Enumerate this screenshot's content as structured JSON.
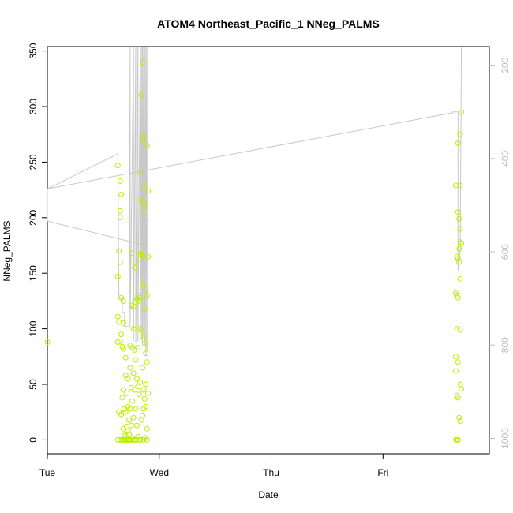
{
  "chart_data": {
    "type": "scatter",
    "title": "ATOM4 Northeast_Pacific_1 NNeg_PALMS",
    "xlabel": "Date",
    "ylabel": "NNeg_PALMS",
    "xlim": [
      0,
      3.95
    ],
    "ylim": [
      -12.5,
      354
    ],
    "x_ticks": [
      {
        "value": 0,
        "label": "Tue"
      },
      {
        "value": 1,
        "label": "Wed"
      },
      {
        "value": 2,
        "label": "Thu"
      },
      {
        "value": 3,
        "label": "Fri"
      }
    ],
    "y_ticks": [
      0,
      50,
      100,
      150,
      200,
      250,
      300,
      350
    ],
    "right_axis": {
      "range": [
        1033,
        160
      ],
      "ticks": [
        200,
        400,
        600,
        800,
        1000
      ],
      "color": "#bdbdbd"
    },
    "grid": false,
    "colors": {
      "points": "#b8f000",
      "line": "#c8c8c8"
    },
    "series": [
      {
        "type": "scatter",
        "points": [
          [
            0.0,
            88
          ],
          [
            0.63,
            247
          ],
          [
            0.63,
            147
          ],
          [
            0.63,
            111
          ],
          [
            0.63,
            88
          ],
          [
            0.63,
            0
          ],
          [
            0.64,
            170
          ],
          [
            0.64,
            106
          ],
          [
            0.64,
            25
          ],
          [
            0.65,
            233
          ],
          [
            0.65,
            206
          ],
          [
            0.65,
            200
          ],
          [
            0.65,
            160
          ],
          [
            0.65,
            89
          ],
          [
            0.65,
            0
          ],
          [
            0.66,
            221
          ],
          [
            0.66,
            128
          ],
          [
            0.66,
            95
          ],
          [
            0.66,
            23
          ],
          [
            0.67,
            84
          ],
          [
            0.67,
            38
          ],
          [
            0.67,
            0
          ],
          [
            0.68,
            125
          ],
          [
            0.68,
            105
          ],
          [
            0.68,
            82
          ],
          [
            0.68,
            45
          ],
          [
            0.68,
            10
          ],
          [
            0.68,
            0
          ],
          [
            0.69,
            28
          ],
          [
            0.69,
            4
          ],
          [
            0.69,
            0
          ],
          [
            0.7,
            74
          ],
          [
            0.7,
            58
          ],
          [
            0.7,
            25
          ],
          [
            0.7,
            3
          ],
          [
            0.7,
            0
          ],
          [
            0.71,
            42
          ],
          [
            0.71,
            12
          ],
          [
            0.71,
            0
          ],
          [
            0.72,
            55
          ],
          [
            0.72,
            30
          ],
          [
            0.72,
            8
          ],
          [
            0.72,
            0
          ],
          [
            0.73,
            18
          ],
          [
            0.73,
            5
          ],
          [
            0.73,
            0
          ],
          [
            0.74,
            85
          ],
          [
            0.74,
            65
          ],
          [
            0.74,
            28
          ],
          [
            0.74,
            0
          ],
          [
            0.75,
            168
          ],
          [
            0.75,
            121
          ],
          [
            0.75,
            47
          ],
          [
            0.75,
            13
          ],
          [
            0.75,
            0
          ],
          [
            0.76,
            83
          ],
          [
            0.76,
            35
          ],
          [
            0.76,
            2
          ],
          [
            0.77,
            120
          ],
          [
            0.77,
            100
          ],
          [
            0.77,
            60
          ],
          [
            0.77,
            20
          ],
          [
            0.77,
            0
          ],
          [
            0.78,
            155
          ],
          [
            0.78,
            81
          ],
          [
            0.78,
            45
          ],
          [
            0.78,
            0
          ],
          [
            0.79,
            160
          ],
          [
            0.79,
            124
          ],
          [
            0.79,
            72
          ],
          [
            0.79,
            28
          ],
          [
            0.79,
            0
          ],
          [
            0.8,
            127
          ],
          [
            0.8,
            55
          ],
          [
            0.8,
            13
          ],
          [
            0.81,
            130
          ],
          [
            0.81,
            83
          ],
          [
            0.81,
            48
          ],
          [
            0.81,
            3
          ],
          [
            0.82,
            125
          ],
          [
            0.82,
            100
          ],
          [
            0.82,
            41
          ],
          [
            0.82,
            0
          ],
          [
            0.83,
            241
          ],
          [
            0.83,
            167
          ],
          [
            0.83,
            128
          ],
          [
            0.83,
            52
          ],
          [
            0.83,
            0
          ],
          [
            0.84,
            310
          ],
          [
            0.84,
            216
          ],
          [
            0.84,
            168
          ],
          [
            0.84,
            99
          ],
          [
            0.84,
            18
          ],
          [
            0.85,
            340
          ],
          [
            0.85,
            270
          ],
          [
            0.85,
            165
          ],
          [
            0.85,
            140
          ],
          [
            0.85,
            65
          ],
          [
            0.85,
            22
          ],
          [
            0.86,
            273
          ],
          [
            0.86,
            214
          ],
          [
            0.86,
            93
          ],
          [
            0.86,
            45
          ],
          [
            0.86,
            28
          ],
          [
            0.86,
            0
          ],
          [
            0.87,
            228
          ],
          [
            0.87,
            209
          ],
          [
            0.87,
            118
          ],
          [
            0.87,
            87
          ],
          [
            0.87,
            37
          ],
          [
            0.87,
            2
          ],
          [
            0.88,
            200
          ],
          [
            0.88,
            135
          ],
          [
            0.88,
            78
          ],
          [
            0.88,
            50
          ],
          [
            0.88,
            30
          ],
          [
            0.89,
            265
          ],
          [
            0.89,
            130
          ],
          [
            0.89,
            70
          ],
          [
            0.89,
            10
          ],
          [
            0.89,
            0
          ],
          [
            0.9,
            224
          ],
          [
            0.9,
            165
          ],
          [
            0.9,
            42
          ],
          [
            3.65,
            229
          ],
          [
            3.65,
            132
          ],
          [
            3.65,
            75
          ],
          [
            3.65,
            62
          ],
          [
            3.65,
            0
          ],
          [
            3.66,
            165
          ],
          [
            3.66,
            130
          ],
          [
            3.66,
            100
          ],
          [
            3.66,
            40
          ],
          [
            3.66,
            0
          ],
          [
            3.67,
            267
          ],
          [
            3.67,
            205
          ],
          [
            3.67,
            163
          ],
          [
            3.67,
            128
          ],
          [
            3.67,
            70
          ],
          [
            3.67,
            38
          ],
          [
            3.67,
            0
          ],
          [
            3.68,
            199
          ],
          [
            3.68,
            172
          ],
          [
            3.68,
            160
          ],
          [
            3.68,
            20
          ],
          [
            3.69,
            275
          ],
          [
            3.69,
            229
          ],
          [
            3.69,
            190
          ],
          [
            3.69,
            178
          ],
          [
            3.69,
            145
          ],
          [
            3.69,
            99
          ],
          [
            3.69,
            50
          ],
          [
            3.69,
            17
          ],
          [
            3.7,
            295
          ],
          [
            3.7,
            177
          ],
          [
            3.7,
            46
          ]
        ]
      },
      {
        "type": "line",
        "axis": "right",
        "points": [
          [
            0.0,
            465
          ],
          [
            0.0,
            534
          ],
          [
            0.89,
            587
          ],
          [
            0.89,
            811
          ],
          [
            0.89,
            160
          ],
          [
            0.88,
            821
          ],
          [
            0.88,
            160
          ],
          [
            0.87,
            800
          ],
          [
            0.87,
            160
          ],
          [
            0.86,
            785
          ],
          [
            0.86,
            160
          ],
          [
            0.85,
            795
          ],
          [
            0.85,
            160
          ],
          [
            0.84,
            790
          ],
          [
            0.84,
            160
          ],
          [
            0.83,
            775
          ],
          [
            0.83,
            160
          ],
          [
            0.81,
            792
          ],
          [
            0.81,
            160
          ],
          [
            0.79,
            795
          ],
          [
            0.79,
            160
          ],
          [
            0.77,
            791
          ],
          [
            0.77,
            160
          ],
          [
            0.74,
            761
          ],
          [
            0.74,
            160
          ],
          [
            0.73,
            760
          ],
          [
            0.73,
            760
          ],
          [
            0.69,
            760
          ],
          [
            0.69,
            730
          ],
          [
            0.67,
            730
          ],
          [
            0.67,
            700
          ],
          [
            0.65,
            700
          ],
          [
            0.64,
            700
          ],
          [
            0.63,
            390
          ],
          [
            0.63,
            390
          ],
          [
            0.0,
            465
          ],
          [
            3.62,
            302
          ],
          [
            3.62,
            300
          ],
          [
            3.67,
            300
          ],
          [
            3.67,
            640
          ],
          [
            3.69,
            600
          ],
          [
            3.7,
            160
          ]
        ]
      }
    ]
  }
}
